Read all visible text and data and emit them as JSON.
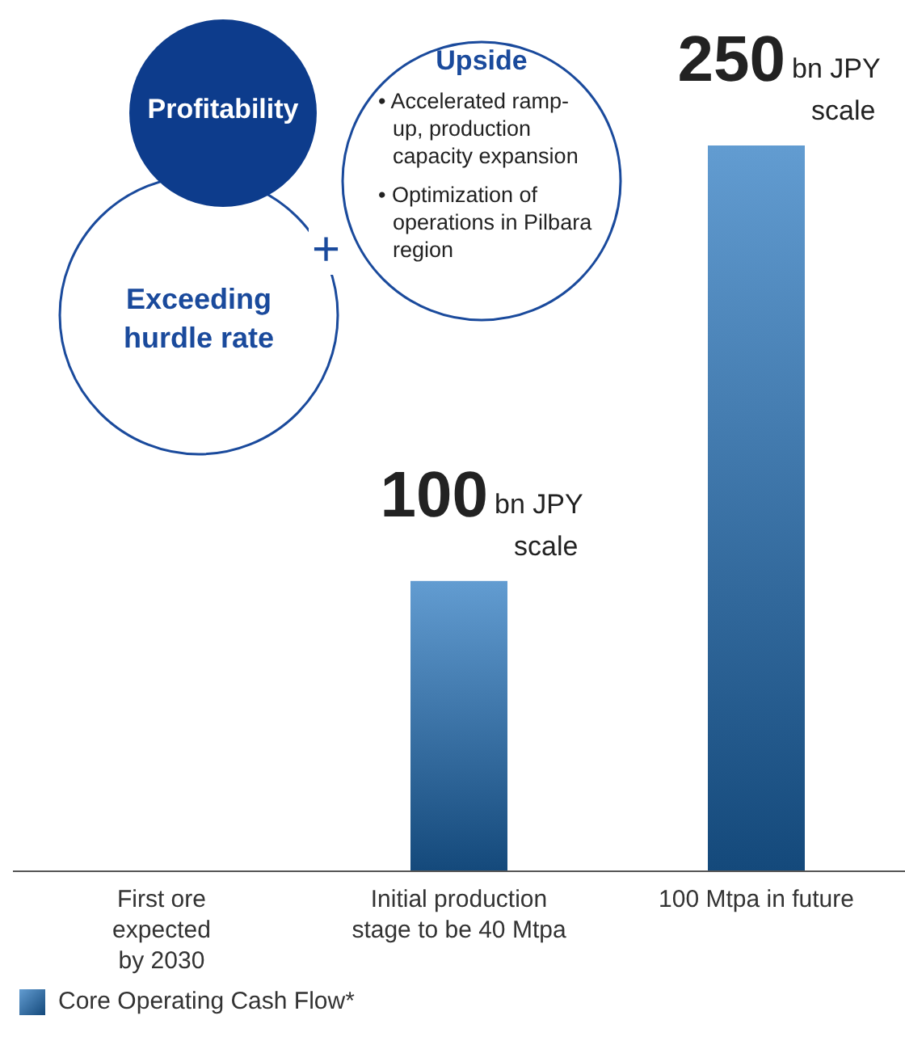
{
  "chart_data": {
    "type": "bar",
    "categories": [
      "First ore expected by 2030",
      "Initial production stage to be 40 Mtpa",
      "100 Mtpa in future"
    ],
    "series": [
      {
        "name": "Core Operating Cash Flow*",
        "color": "#1f71bd",
        "values": [
          null,
          100,
          250
        ]
      }
    ],
    "data_labels": true,
    "legend": "bottom left",
    "grid": false,
    "annotations": [
      "Profitability",
      "Upside",
      "• Accelerated ramp-up, production capacity expansion",
      "• Optimization of operations in Pilbara region",
      "+",
      "Exceeding hurdle rate",
      {
        "text": "bn JPY scale",
        "x": "Initial production stage to be 40 Mtpa",
        "y": 100
      },
      {
        "text": "bn JPY scale",
        "x": "100 Mtpa in future",
        "y": 250
      }
    ]
  }
}
